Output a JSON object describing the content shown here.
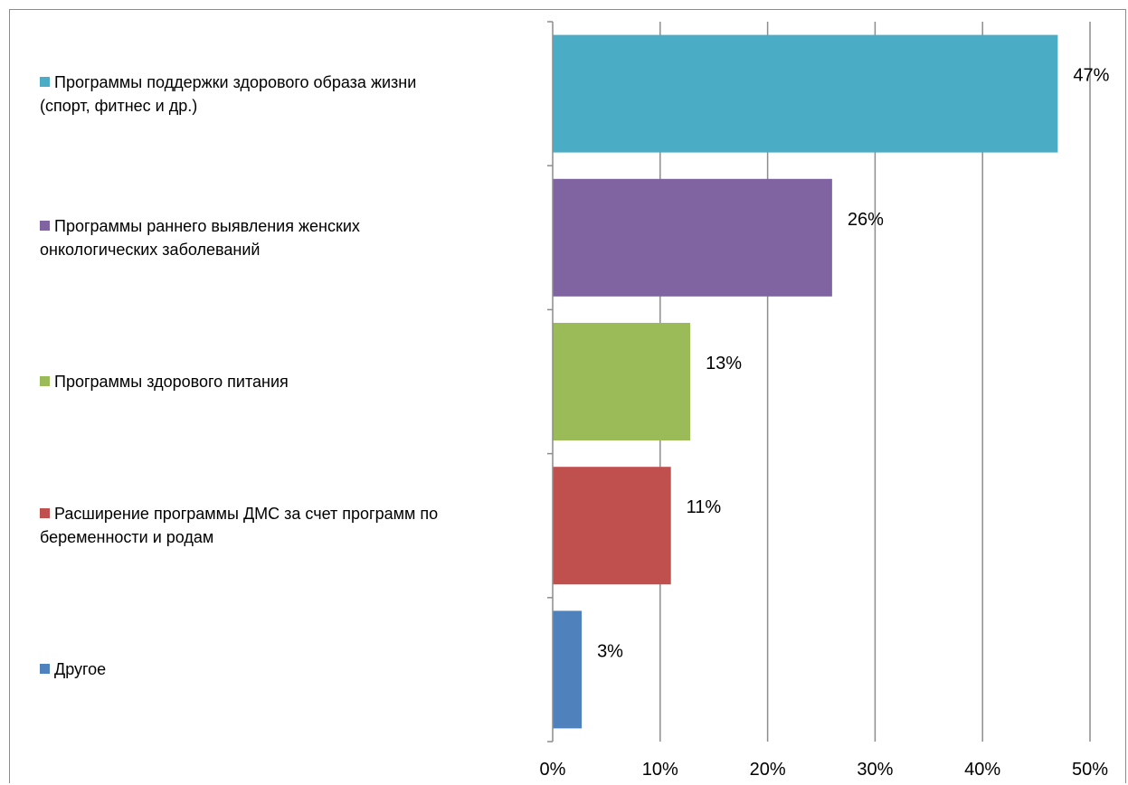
{
  "chart_data": {
    "type": "bar",
    "orientation": "horizontal",
    "title": "",
    "xlabel": "",
    "ylabel": "",
    "xlim": [
      0,
      50
    ],
    "grid": true,
    "legend_position": "left",
    "categories": [
      "Программы поддержки здорового образа жизни (спорт, фитнес и др.)",
      "Программы раннего выявления женских онкологических заболеваний",
      "Программы здорового питания",
      "Расширение программы ДМС за счет программ по беременности и родам",
      "Другое"
    ],
    "values": [
      47,
      26,
      13,
      11,
      3
    ],
    "bar_values": [
      47,
      26,
      12.8,
      11,
      2.7
    ],
    "value_labels": [
      "47%",
      "26%",
      "13%",
      "11%",
      "3%"
    ],
    "colors": [
      "#4bacc6",
      "#8064a2",
      "#9bbb59",
      "#c0504d",
      "#4f81bd"
    ],
    "ticks": [
      0,
      10,
      20,
      30,
      40,
      50
    ],
    "tick_labels": [
      "0%",
      "10%",
      "20%",
      "30%",
      "40%",
      "50%"
    ]
  },
  "legend": [
    {
      "lines": [
        "Программы поддержки здорового образа жизни",
        "(спорт, фитнес и др.)"
      ],
      "color": "#4bacc6"
    },
    {
      "lines": [
        "Программы раннего выявления женских",
        "онкологических заболеваний"
      ],
      "color": "#8064a2"
    },
    {
      "lines": [
        "Программы здорового питания"
      ],
      "color": "#9bbb59"
    },
    {
      "lines": [
        "Расширение программы ДМС за счет программ по",
        "беременности и родам"
      ],
      "color": "#c0504d"
    },
    {
      "lines": [
        "Другое"
      ],
      "color": "#4f81bd"
    }
  ]
}
